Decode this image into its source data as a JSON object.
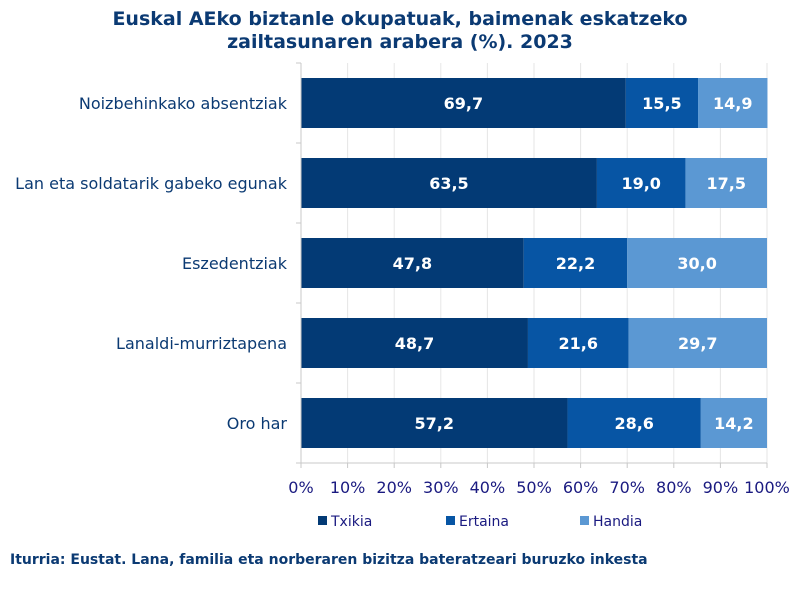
{
  "chart_data": {
    "type": "bar",
    "orientation": "horizontal",
    "stacked": true,
    "title_lines": [
      "Euskal AEko biztanle okupatuak, baimenak eskatzeko",
      "zailtasunaren arabera (%). 2023"
    ],
    "categories": [
      "Noizbehinkako absentziak",
      "Lan eta soldatarik gabeko egunak",
      "Eszedentziak",
      "Lanaldi-murriztapena",
      "Oro har"
    ],
    "series": [
      {
        "name": "Txikia",
        "color": "#033a75",
        "values": [
          69.7,
          63.5,
          47.8,
          48.7,
          57.2
        ],
        "labels": [
          "69,7",
          "63,5",
          "47,8",
          "48,7",
          "57,2"
        ]
      },
      {
        "name": "Ertaina",
        "color": "#0755a4",
        "values": [
          15.5,
          19.0,
          22.2,
          21.6,
          28.6
        ],
        "labels": [
          "15,5",
          "19,0",
          "22,2",
          "21,6",
          "28,6"
        ]
      },
      {
        "name": "Handia",
        "color": "#5b98d3",
        "values": [
          14.9,
          17.5,
          30.0,
          29.7,
          14.2
        ],
        "labels": [
          "14,9",
          "17,5",
          "30,0",
          "29,7",
          "14,2"
        ]
      }
    ],
    "xlim": [
      0,
      100
    ],
    "xticks": [
      0,
      10,
      20,
      30,
      40,
      50,
      60,
      70,
      80,
      90,
      100
    ],
    "xtick_labels": [
      "0%",
      "10%",
      "20%",
      "30%",
      "40%",
      "50%",
      "60%",
      "70%",
      "80%",
      "90%",
      "100%"
    ],
    "grid": true,
    "legend_position": "bottom"
  },
  "source_note": "Iturria: Eustat. Lana, familia eta norberaren bizitza bateratzeari buruzko inkesta"
}
